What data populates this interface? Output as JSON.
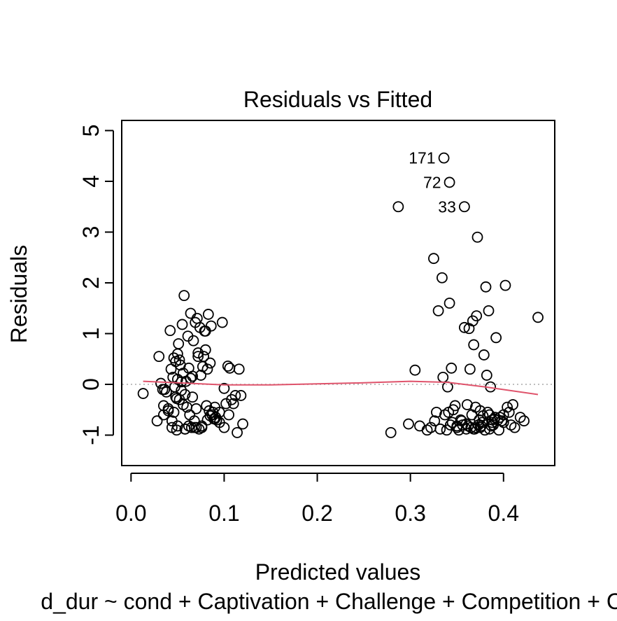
{
  "chart_data": {
    "type": "scatter",
    "title": "Residuals vs Fitted",
    "xlabel": "Predicted values",
    "ylabel": "Residuals",
    "subtitle": "d_dur ~ cond + Captivation + Challenge + Competition + Co",
    "xlim": [
      -0.01,
      0.455
    ],
    "ylim": [
      -1.6,
      5.2
    ],
    "xticks": [
      0.0,
      0.1,
      0.2,
      0.3,
      0.4
    ],
    "xtick_labels": [
      "0.0",
      "0.1",
      "0.2",
      "0.3",
      "0.4"
    ],
    "yticks": [
      -1,
      0,
      1,
      2,
      3,
      4,
      5
    ],
    "ytick_labels": [
      "-1",
      "0",
      "1",
      "2",
      "3",
      "4",
      "5"
    ],
    "reference_line": {
      "y": 0,
      "style": "dotted",
      "color": "#bebebe"
    },
    "smooth_color": "#df536b",
    "smooth_line": {
      "x": [
        0.013,
        0.05,
        0.1,
        0.15,
        0.2,
        0.25,
        0.3,
        0.34,
        0.38,
        0.437
      ],
      "y": [
        0.06,
        0.03,
        -0.01,
        -0.01,
        0.01,
        0.03,
        0.06,
        0.04,
        -0.05,
        -0.2
      ]
    },
    "labeled_points": [
      {
        "label": "171",
        "x": 0.336,
        "y": 4.46
      },
      {
        "label": "72",
        "x": 0.342,
        "y": 3.98
      },
      {
        "label": "33",
        "x": 0.358,
        "y": 3.5
      }
    ],
    "points": {
      "x": [
        0.013,
        0.03,
        0.032,
        0.035,
        0.038,
        0.04,
        0.042,
        0.043,
        0.044,
        0.045,
        0.046,
        0.047,
        0.048,
        0.049,
        0.05,
        0.05,
        0.051,
        0.052,
        0.053,
        0.054,
        0.055,
        0.056,
        0.057,
        0.058,
        0.059,
        0.06,
        0.061,
        0.062,
        0.063,
        0.064,
        0.065,
        0.066,
        0.067,
        0.068,
        0.069,
        0.07,
        0.071,
        0.072,
        0.073,
        0.074,
        0.075,
        0.076,
        0.077,
        0.078,
        0.079,
        0.08,
        0.081,
        0.082,
        0.083,
        0.084,
        0.085,
        0.086,
        0.087,
        0.088,
        0.089,
        0.09,
        0.091,
        0.092,
        0.095,
        0.098,
        0.1,
        0.102,
        0.104,
        0.106,
        0.108,
        0.11,
        0.112,
        0.114,
        0.116,
        0.118,
        0.12,
        0.058,
        0.048,
        0.044,
        0.054,
        0.066,
        0.07,
        0.046,
        0.05,
        0.062,
        0.056,
        0.036,
        0.04,
        0.08,
        0.085,
        0.09,
        0.095,
        0.1,
        0.105,
        0.034,
        0.068,
        0.052,
        0.064,
        0.076,
        0.082,
        0.058,
        0.028,
        0.035,
        0.072,
        0.049,
        0.279,
        0.287,
        0.298,
        0.305,
        0.31,
        0.318,
        0.322,
        0.325,
        0.326,
        0.328,
        0.33,
        0.332,
        0.334,
        0.335,
        0.337,
        0.339,
        0.34,
        0.341,
        0.342,
        0.343,
        0.344,
        0.345,
        0.346,
        0.348,
        0.35,
        0.352,
        0.354,
        0.356,
        0.358,
        0.36,
        0.361,
        0.362,
        0.363,
        0.364,
        0.365,
        0.366,
        0.367,
        0.368,
        0.369,
        0.37,
        0.371,
        0.372,
        0.373,
        0.374,
        0.375,
        0.376,
        0.377,
        0.378,
        0.379,
        0.38,
        0.381,
        0.382,
        0.383,
        0.384,
        0.385,
        0.386,
        0.387,
        0.388,
        0.389,
        0.39,
        0.391,
        0.392,
        0.394,
        0.396,
        0.398,
        0.4,
        0.402,
        0.404,
        0.406,
        0.408,
        0.41,
        0.412,
        0.418,
        0.422,
        0.437,
        0.385,
        0.37,
        0.36,
        0.375,
        0.395,
        0.4,
        0.35,
        0.368,
        0.355,
        0.388
      ],
      "y": [
        -0.18,
        0.55,
        0.02,
        -0.42,
        -0.15,
        -0.48,
        1.06,
        0.3,
        -0.72,
        0.14,
        0.52,
        -0.05,
        0.45,
        -0.28,
        0.6,
        -0.82,
        0.8,
        -0.3,
        0.38,
        -0.12,
        1.18,
        0.22,
        1.75,
        -0.88,
        0.06,
        -0.45,
        0.95,
        0.32,
        -0.6,
        1.4,
        -0.85,
        0.16,
        0.86,
        -0.72,
        1.22,
        -0.48,
        1.3,
        0.62,
        -0.88,
        1.12,
        0.18,
        -0.85,
        0.35,
        0.55,
        1.05,
        0.68,
        -0.42,
        0.3,
        1.38,
        -0.52,
        0.42,
        1.15,
        -0.6,
        -0.55,
        -0.68,
        -0.45,
        -0.65,
        -0.7,
        -0.55,
        1.22,
        -0.08,
        -0.38,
        0.36,
        0.32,
        -0.3,
        -0.38,
        -0.22,
        -0.95,
        0.3,
        -0.22,
        -0.78,
        -0.88,
        -0.25,
        -0.85,
        0.05,
        -0.25,
        -0.85,
        -0.55,
        0.1,
        -0.82,
        -0.4,
        -0.1,
        -0.52,
        1.05,
        -0.62,
        -0.68,
        -0.75,
        -0.85,
        -0.6,
        -0.1,
        -0.85,
        0.48,
        0.12,
        -0.82,
        -0.7,
        -0.2,
        -0.72,
        -0.6,
        0.55,
        -0.9,
        -0.95,
        3.5,
        -0.78,
        0.28,
        -0.82,
        -0.9,
        -0.85,
        2.48,
        -0.72,
        -0.55,
        1.45,
        -0.88,
        2.1,
        0.14,
        -0.6,
        -0.9,
        -0.05,
        -0.55,
        1.6,
        -0.8,
        0.32,
        -0.75,
        -0.5,
        -0.42,
        -0.85,
        -0.9,
        -0.7,
        -0.8,
        1.12,
        -0.88,
        -0.4,
        -0.82,
        1.1,
        0.3,
        -0.85,
        -0.6,
        1.25,
        0.78,
        -0.88,
        -0.45,
        1.35,
        2.9,
        -0.8,
        -0.7,
        -0.85,
        -0.82,
        -0.75,
        -0.62,
        0.58,
        -0.9,
        1.92,
        0.18,
        -0.55,
        1.45,
        -0.88,
        -0.05,
        -0.82,
        -0.75,
        -0.8,
        -0.68,
        -0.65,
        0.92,
        -0.7,
        -0.65,
        -0.72,
        -0.6,
        1.95,
        -0.45,
        -0.55,
        -0.8,
        -0.4,
        -0.85,
        -0.65,
        -0.72,
        1.32,
        -0.6,
        -0.85,
        -0.78,
        -0.52,
        -0.9,
        -0.75,
        -0.82,
        -0.88,
        -0.72,
        -0.7
      ]
    }
  }
}
